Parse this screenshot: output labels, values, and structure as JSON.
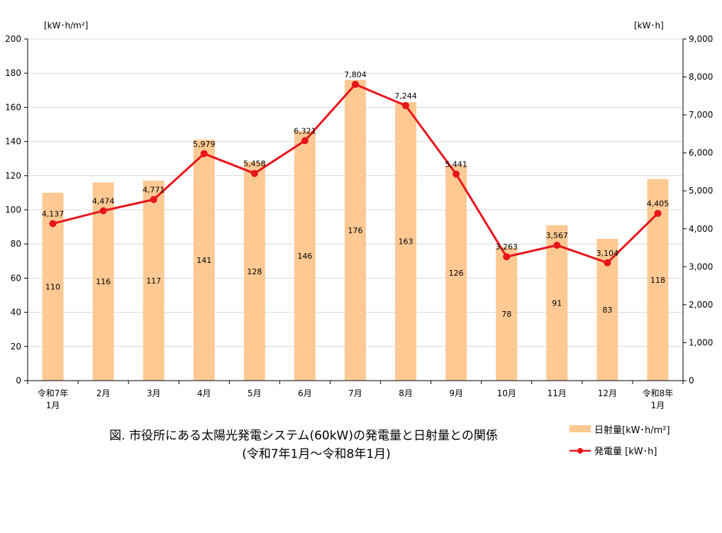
{
  "chart_data": {
    "type": "bar",
    "title": "",
    "caption": {
      "line1": "図. 市役所にある太陽光発電システム(60kW)の発電量と日射量との関係",
      "line2": "(令和7年1月〜令和8年1月)"
    },
    "categories": [
      [
        "令和7年",
        "1月"
      ],
      [
        "2月"
      ],
      [
        "3月"
      ],
      [
        "4月"
      ],
      [
        "5月"
      ],
      [
        "6月"
      ],
      [
        "7月"
      ],
      [
        "8月"
      ],
      [
        "9月"
      ],
      [
        "10月"
      ],
      [
        "11月"
      ],
      [
        "12月"
      ],
      [
        "令和8年",
        "1月"
      ]
    ],
    "y_left": {
      "unit": "[kW･h/m²]",
      "min": 0,
      "max": 200,
      "step": 20,
      "ticks": [
        "0",
        "20",
        "40",
        "60",
        "80",
        "100",
        "120",
        "140",
        "160",
        "180",
        "200"
      ]
    },
    "y_right": {
      "unit": "[kW･h]",
      "min": 0,
      "max": 9000,
      "step": 1000,
      "ticks": [
        "0",
        "1,000",
        "2,000",
        "3,000",
        "4,000",
        "5,000",
        "6,000",
        "7,000",
        "8,000",
        "9,000"
      ]
    },
    "series": [
      {
        "name": "日射量[kW･h/m²]",
        "type": "bar",
        "axis": "left",
        "color": "#FFC993",
        "values": [
          110,
          116,
          117,
          141,
          128,
          146,
          176,
          163,
          126,
          78,
          91,
          83,
          118
        ],
        "labels": [
          "110",
          "116",
          "117",
          "141",
          "128",
          "146",
          "176",
          "163",
          "126",
          "78",
          "91",
          "83",
          "118"
        ]
      },
      {
        "name": "発電量 [kW･h]",
        "type": "line",
        "axis": "right",
        "color": "#E8151B",
        "values": [
          4137,
          4474,
          4771,
          5979,
          5458,
          6321,
          7804,
          7244,
          5441,
          3263,
          3567,
          3104,
          4405
        ],
        "labels": [
          "4,137",
          "4,474",
          "4,771",
          "5,979",
          "5,458",
          "6,321",
          "7,804",
          "7,244",
          "5,441",
          "3,263",
          "3,567",
          "3,104",
          "4,405"
        ]
      }
    ],
    "grid": true,
    "legend_position": "bottom-right"
  }
}
